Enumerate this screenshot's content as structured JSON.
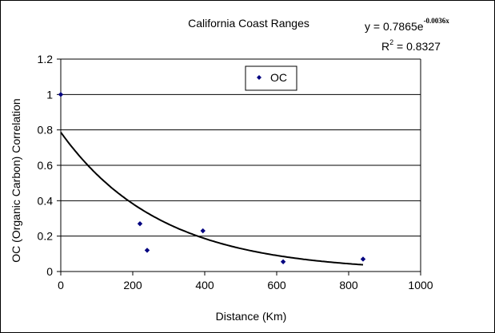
{
  "chart_data": {
    "type": "scatter",
    "title": "California Coast Ranges",
    "xlabel": "Distance (Km)",
    "ylabel": "OC (Organic Carbon) Correlation",
    "xlim": [
      0,
      1000
    ],
    "ylim": [
      0,
      1.2
    ],
    "xticks": [
      "0",
      "200",
      "400",
      "600",
      "800",
      "1000"
    ],
    "yticks": [
      "0",
      "0.2",
      "0.4",
      "0.6",
      "0.8",
      "1",
      "1.2"
    ],
    "xtick_values": [
      0,
      200,
      400,
      600,
      800,
      1000
    ],
    "ytick_values": [
      0,
      0.2,
      0.4,
      0.6,
      0.8,
      1.0,
      1.2
    ],
    "grid": "horizontal",
    "legend_position": "top-center",
    "series": [
      {
        "name": "OC",
        "color": "#000080",
        "marker": "diamond",
        "points": [
          {
            "x": 0,
            "y": 1.0
          },
          {
            "x": 220,
            "y": 0.27
          },
          {
            "x": 240,
            "y": 0.12
          },
          {
            "x": 395,
            "y": 0.23
          },
          {
            "x": 618,
            "y": 0.055
          },
          {
            "x": 840,
            "y": 0.07
          }
        ]
      }
    ],
    "trendline": {
      "type": "exponential",
      "a": 0.7865,
      "b": -0.0036,
      "x_range": [
        0,
        840
      ],
      "color": "#000000",
      "equation": {
        "prefix": "y = 0.7865e",
        "exponent": "-0.0036x"
      },
      "r2": {
        "prefix": "R",
        "sup": "2",
        "suffix": " = 0.8327"
      }
    }
  }
}
